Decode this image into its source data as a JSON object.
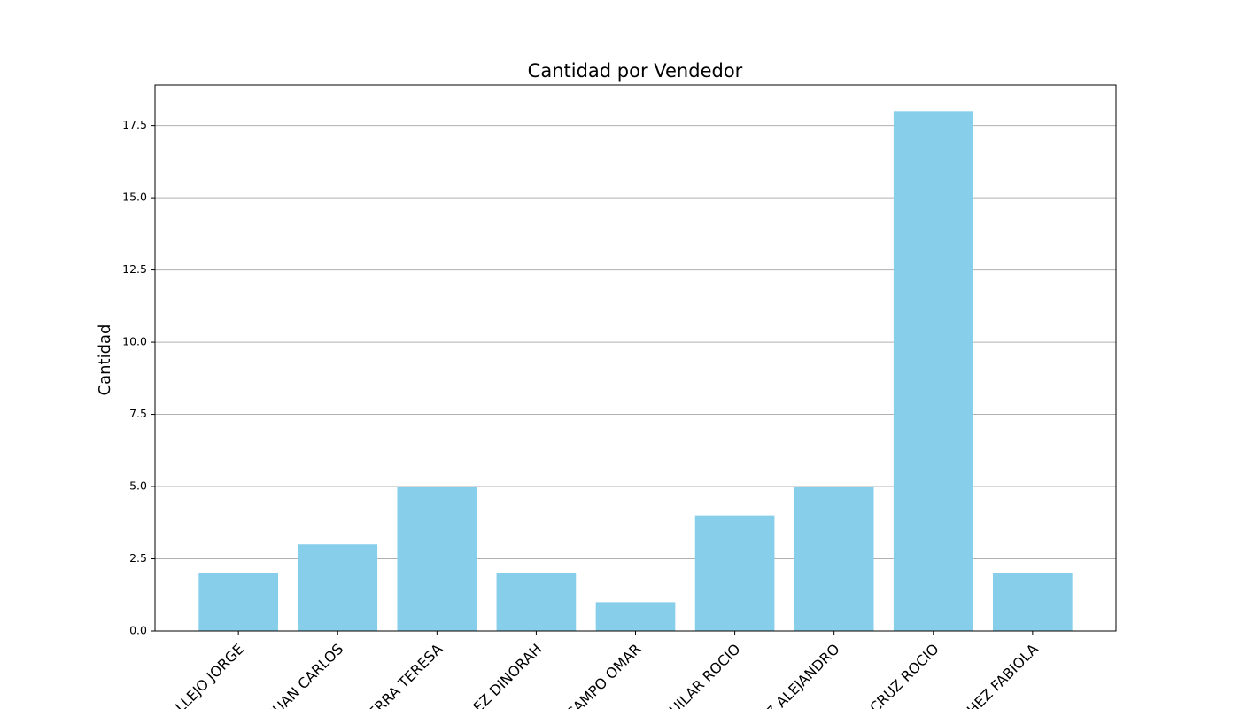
{
  "chart_data": {
    "type": "bar",
    "title": "Cantidad por Vendedor",
    "y_label": "Cantidad",
    "categories": [
      "LLEJO JORGE",
      "JUAN CARLOS",
      "ERRA TERESA",
      "EZ DINORAH",
      "CAMPO OMAR",
      "UILAR ROCIO",
      "Z ALEJANDRO",
      "CRUZ ROCIO",
      "HEZ FABIOLA"
    ],
    "values": [
      2,
      3,
      5,
      2,
      1,
      4,
      5,
      18,
      2
    ],
    "color": "#87ceeb",
    "ylim": [
      0,
      18.9
    ],
    "yticks": [
      {
        "value": 0,
        "label": "0.0"
      },
      {
        "value": 2.5,
        "label": "2.5"
      },
      {
        "value": 5,
        "label": "5.0"
      },
      {
        "value": 7.5,
        "label": "7.5"
      },
      {
        "value": 10,
        "label": "10.0"
      },
      {
        "value": 12.5,
        "label": "12.5"
      },
      {
        "value": 15,
        "label": "15.0"
      },
      {
        "value": 17.5,
        "label": "17.5"
      }
    ],
    "grid": true
  }
}
